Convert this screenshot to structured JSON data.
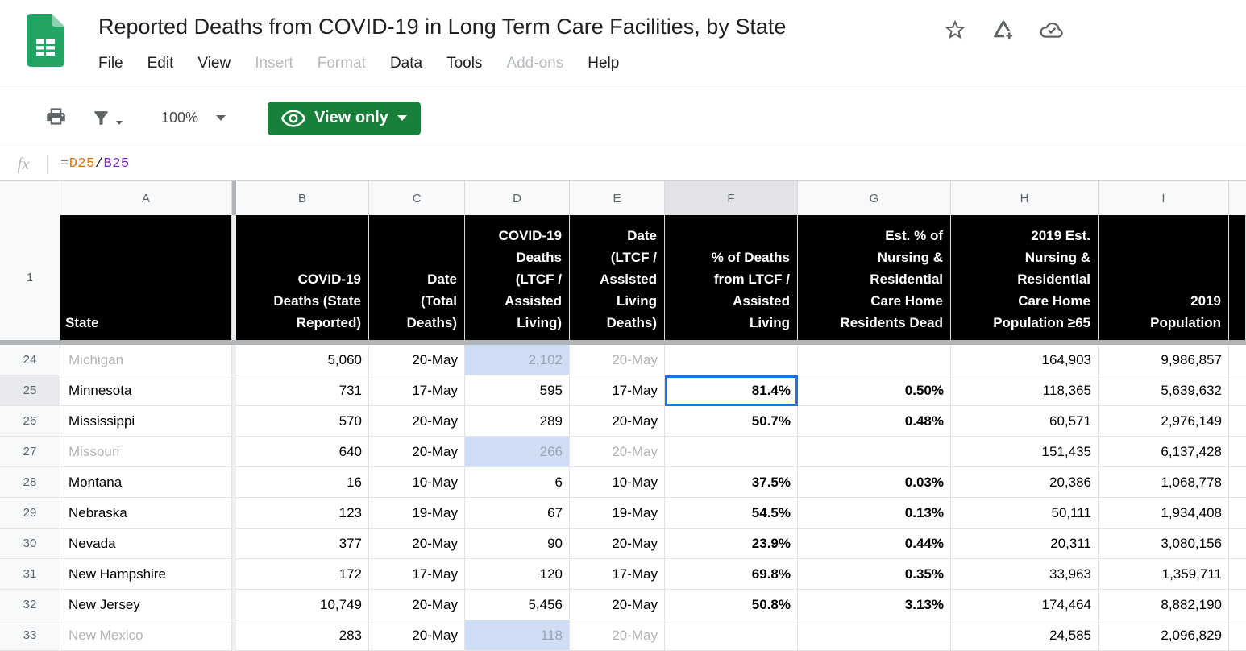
{
  "app": {
    "title": "Reported Deaths from COVID-19 in Long Term Care Facilities, by State",
    "menu": [
      {
        "label": "File",
        "enabled": true
      },
      {
        "label": "Edit",
        "enabled": true
      },
      {
        "label": "View",
        "enabled": true
      },
      {
        "label": "Insert",
        "enabled": false
      },
      {
        "label": "Format",
        "enabled": false
      },
      {
        "label": "Data",
        "enabled": true
      },
      {
        "label": "Tools",
        "enabled": true
      },
      {
        "label": "Add-ons",
        "enabled": false
      },
      {
        "label": "Help",
        "enabled": true
      }
    ]
  },
  "toolbar": {
    "zoom_level": "100%",
    "view_mode_label": "View only"
  },
  "formula_bar": {
    "fx_label": "fx",
    "formula": "=D25/B25",
    "tokens": [
      {
        "text": "=",
        "color": "#5f6368"
      },
      {
        "text": "D25",
        "color": "#e8710a"
      },
      {
        "text": "/",
        "color": "#202124"
      },
      {
        "text": "B25",
        "color": "#7627bb"
      }
    ]
  },
  "grid": {
    "header_row_num": "1",
    "selection": {
      "row": "25",
      "col": "F",
      "cell_value": "81.4%"
    },
    "columns": [
      {
        "letter": "A",
        "header": "State"
      },
      {
        "letter": "B",
        "header": "COVID-19\nDeaths (State\nReported)"
      },
      {
        "letter": "C",
        "header": "Date\n(Total\nDeaths)"
      },
      {
        "letter": "D",
        "header": "COVID-19\nDeaths\n(LTCF /\nAssisted\nLiving)"
      },
      {
        "letter": "E",
        "header": "Date\n(LTCF /\nAssisted\nLiving\nDeaths)"
      },
      {
        "letter": "F",
        "header": "% of Deaths\nfrom LTCF /\nAssisted\nLiving"
      },
      {
        "letter": "G",
        "header": "Est. % of\nNursing &\nResidential\nCare Home\nResidents Dead"
      },
      {
        "letter": "H",
        "header": "2019 Est.\nNursing &\nResidential\nCare Home\nPopulation ≥65"
      },
      {
        "letter": "I",
        "header": "2019\nPopulation"
      }
    ],
    "rows": [
      {
        "num": "24",
        "state": "Michigan",
        "muted": true,
        "b": "5,060",
        "c": "20-May",
        "d": "2,102",
        "e": "20-May",
        "f": "",
        "g": "",
        "h": "164,903",
        "i": "9,986,857"
      },
      {
        "num": "25",
        "state": "Minnesota",
        "muted": false,
        "b": "731",
        "c": "17-May",
        "d": "595",
        "e": "17-May",
        "f": "81.4%",
        "g": "0.50%",
        "h": "118,365",
        "i": "5,639,632"
      },
      {
        "num": "26",
        "state": "Mississippi",
        "muted": false,
        "b": "570",
        "c": "20-May",
        "d": "289",
        "e": "20-May",
        "f": "50.7%",
        "g": "0.48%",
        "h": "60,571",
        "i": "2,976,149"
      },
      {
        "num": "27",
        "state": "Missouri",
        "muted": true,
        "b": "640",
        "c": "20-May",
        "d": "266",
        "e": "20-May",
        "f": "",
        "g": "",
        "h": "151,435",
        "i": "6,137,428"
      },
      {
        "num": "28",
        "state": "Montana",
        "muted": false,
        "b": "16",
        "c": "10-May",
        "d": "6",
        "e": "10-May",
        "f": "37.5%",
        "g": "0.03%",
        "h": "20,386",
        "i": "1,068,778"
      },
      {
        "num": "29",
        "state": "Nebraska",
        "muted": false,
        "b": "123",
        "c": "19-May",
        "d": "67",
        "e": "19-May",
        "f": "54.5%",
        "g": "0.13%",
        "h": "50,111",
        "i": "1,934,408"
      },
      {
        "num": "30",
        "state": "Nevada",
        "muted": false,
        "b": "377",
        "c": "20-May",
        "d": "90",
        "e": "20-May",
        "f": "23.9%",
        "g": "0.44%",
        "h": "20,311",
        "i": "3,080,156"
      },
      {
        "num": "31",
        "state": "New Hampshire",
        "muted": false,
        "b": "172",
        "c": "17-May",
        "d": "120",
        "e": "17-May",
        "f": "69.8%",
        "g": "0.35%",
        "h": "33,963",
        "i": "1,359,711"
      },
      {
        "num": "32",
        "state": "New Jersey",
        "muted": false,
        "b": "10,749",
        "c": "20-May",
        "d": "5,456",
        "e": "20-May",
        "f": "50.8%",
        "g": "3.13%",
        "h": "174,464",
        "i": "8,882,190"
      },
      {
        "num": "33",
        "state": "New Mexico",
        "muted": true,
        "b": "283",
        "c": "20-May",
        "d": "118",
        "e": "20-May",
        "f": "",
        "g": "",
        "h": "24,585",
        "i": "2,096,829"
      }
    ]
  },
  "colors": {
    "selection_border": "#1a73e8",
    "view_only_button": "#188038",
    "highlighted_cell_bg": "#cfdef5",
    "header_cell_bg": "#000000"
  }
}
